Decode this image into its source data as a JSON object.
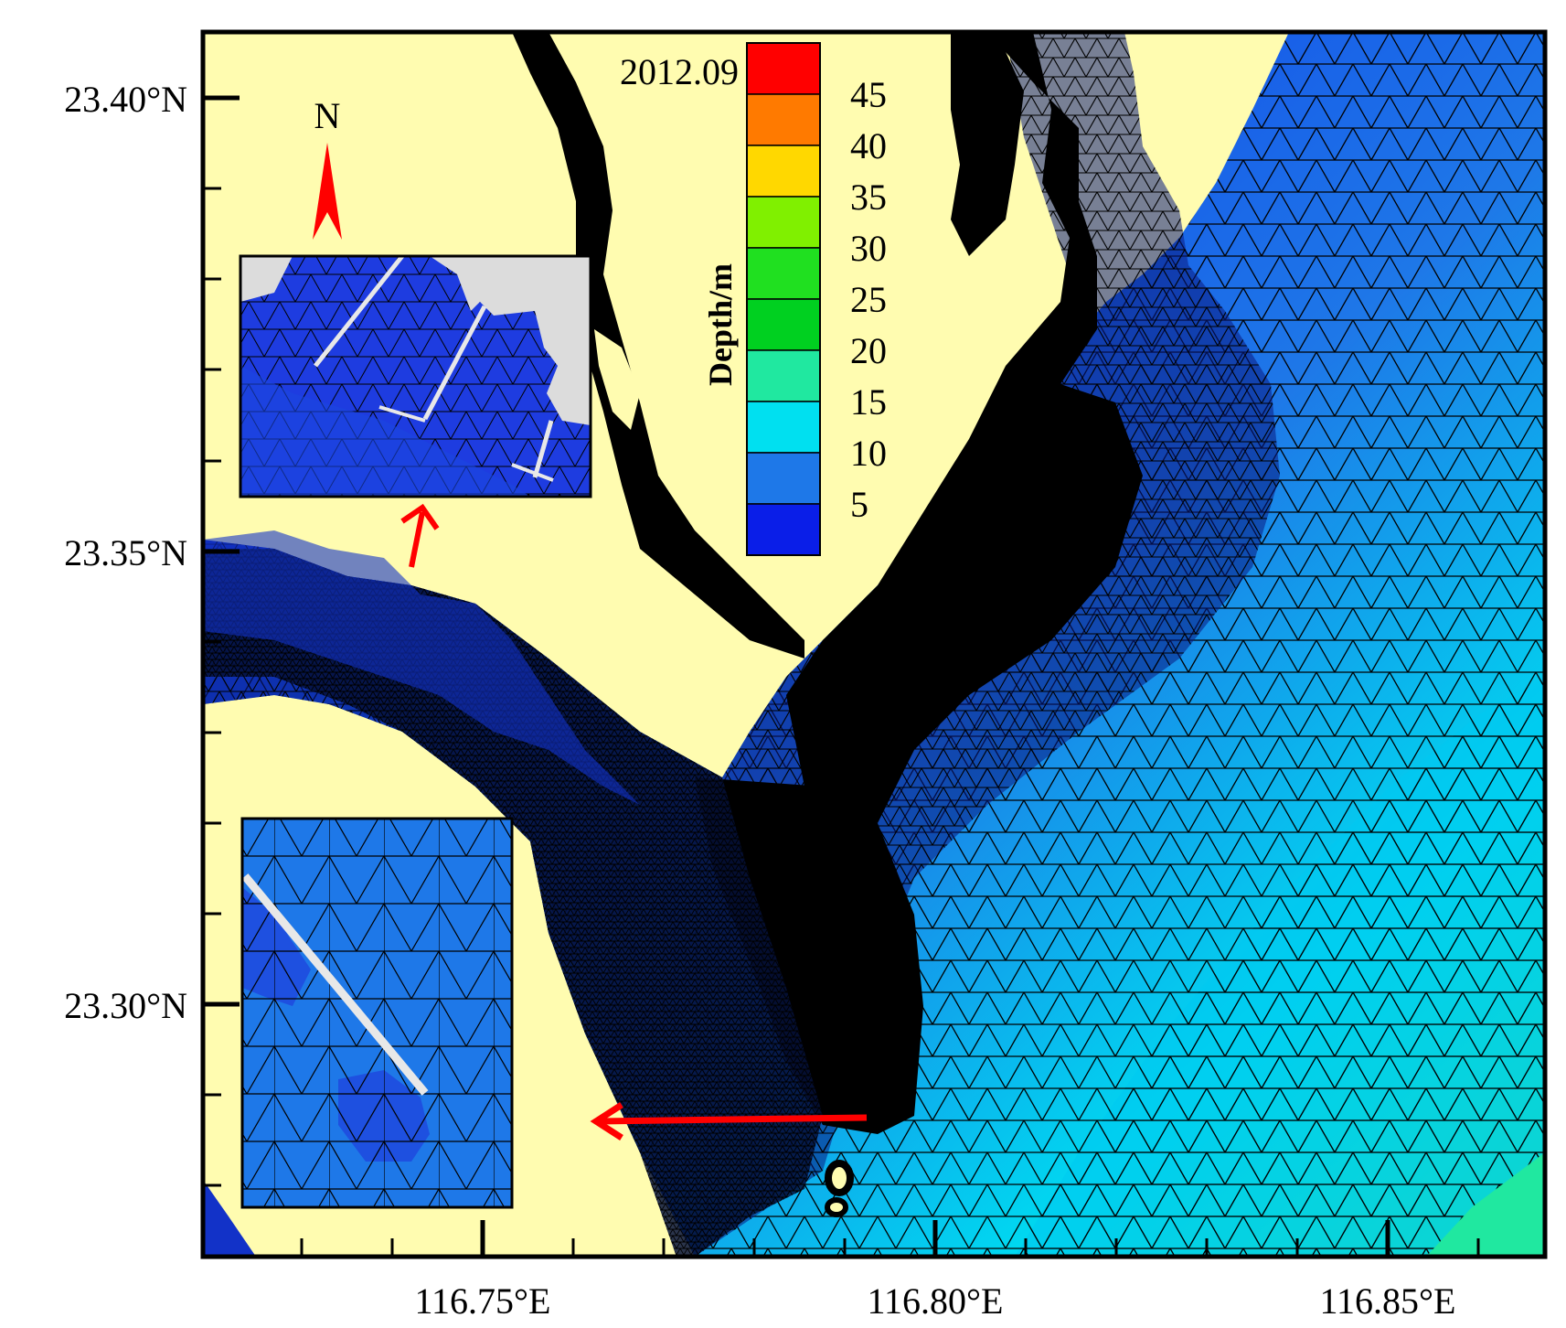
{
  "map": {
    "date_label": "2012.09",
    "legend_title": "Depth/m",
    "north_label": "N",
    "x_ticks": [
      {
        "label": "116.75°E",
        "value": 116.75
      },
      {
        "label": "116.80°E",
        "value": 116.8
      },
      {
        "label": "116.85°E",
        "value": 116.85
      }
    ],
    "y_ticks": [
      {
        "label": "23.40°N",
        "value": 23.4
      },
      {
        "label": "23.35°N",
        "value": 23.35
      },
      {
        "label": "23.30°N",
        "value": 23.3
      }
    ],
    "colorbar": {
      "labels": [
        "45",
        "40",
        "35",
        "30",
        "25",
        "20",
        "15",
        "10",
        "5"
      ],
      "colors": [
        "#ff0000",
        "#ff7a00",
        "#ffd800",
        "#80f000",
        "#20e020",
        "#00d020",
        "#20e8a0",
        "#00e0f0",
        "#1e78e8",
        "#0a1ee8"
      ]
    },
    "colors": {
      "land": "#fffcb0",
      "mesh_line": "#000000",
      "arrow": "#ff0000",
      "inset_land": "#dcdcdc",
      "inset_water_dark": "#1e3ce0",
      "inset_water_light": "#1e78e8"
    }
  }
}
